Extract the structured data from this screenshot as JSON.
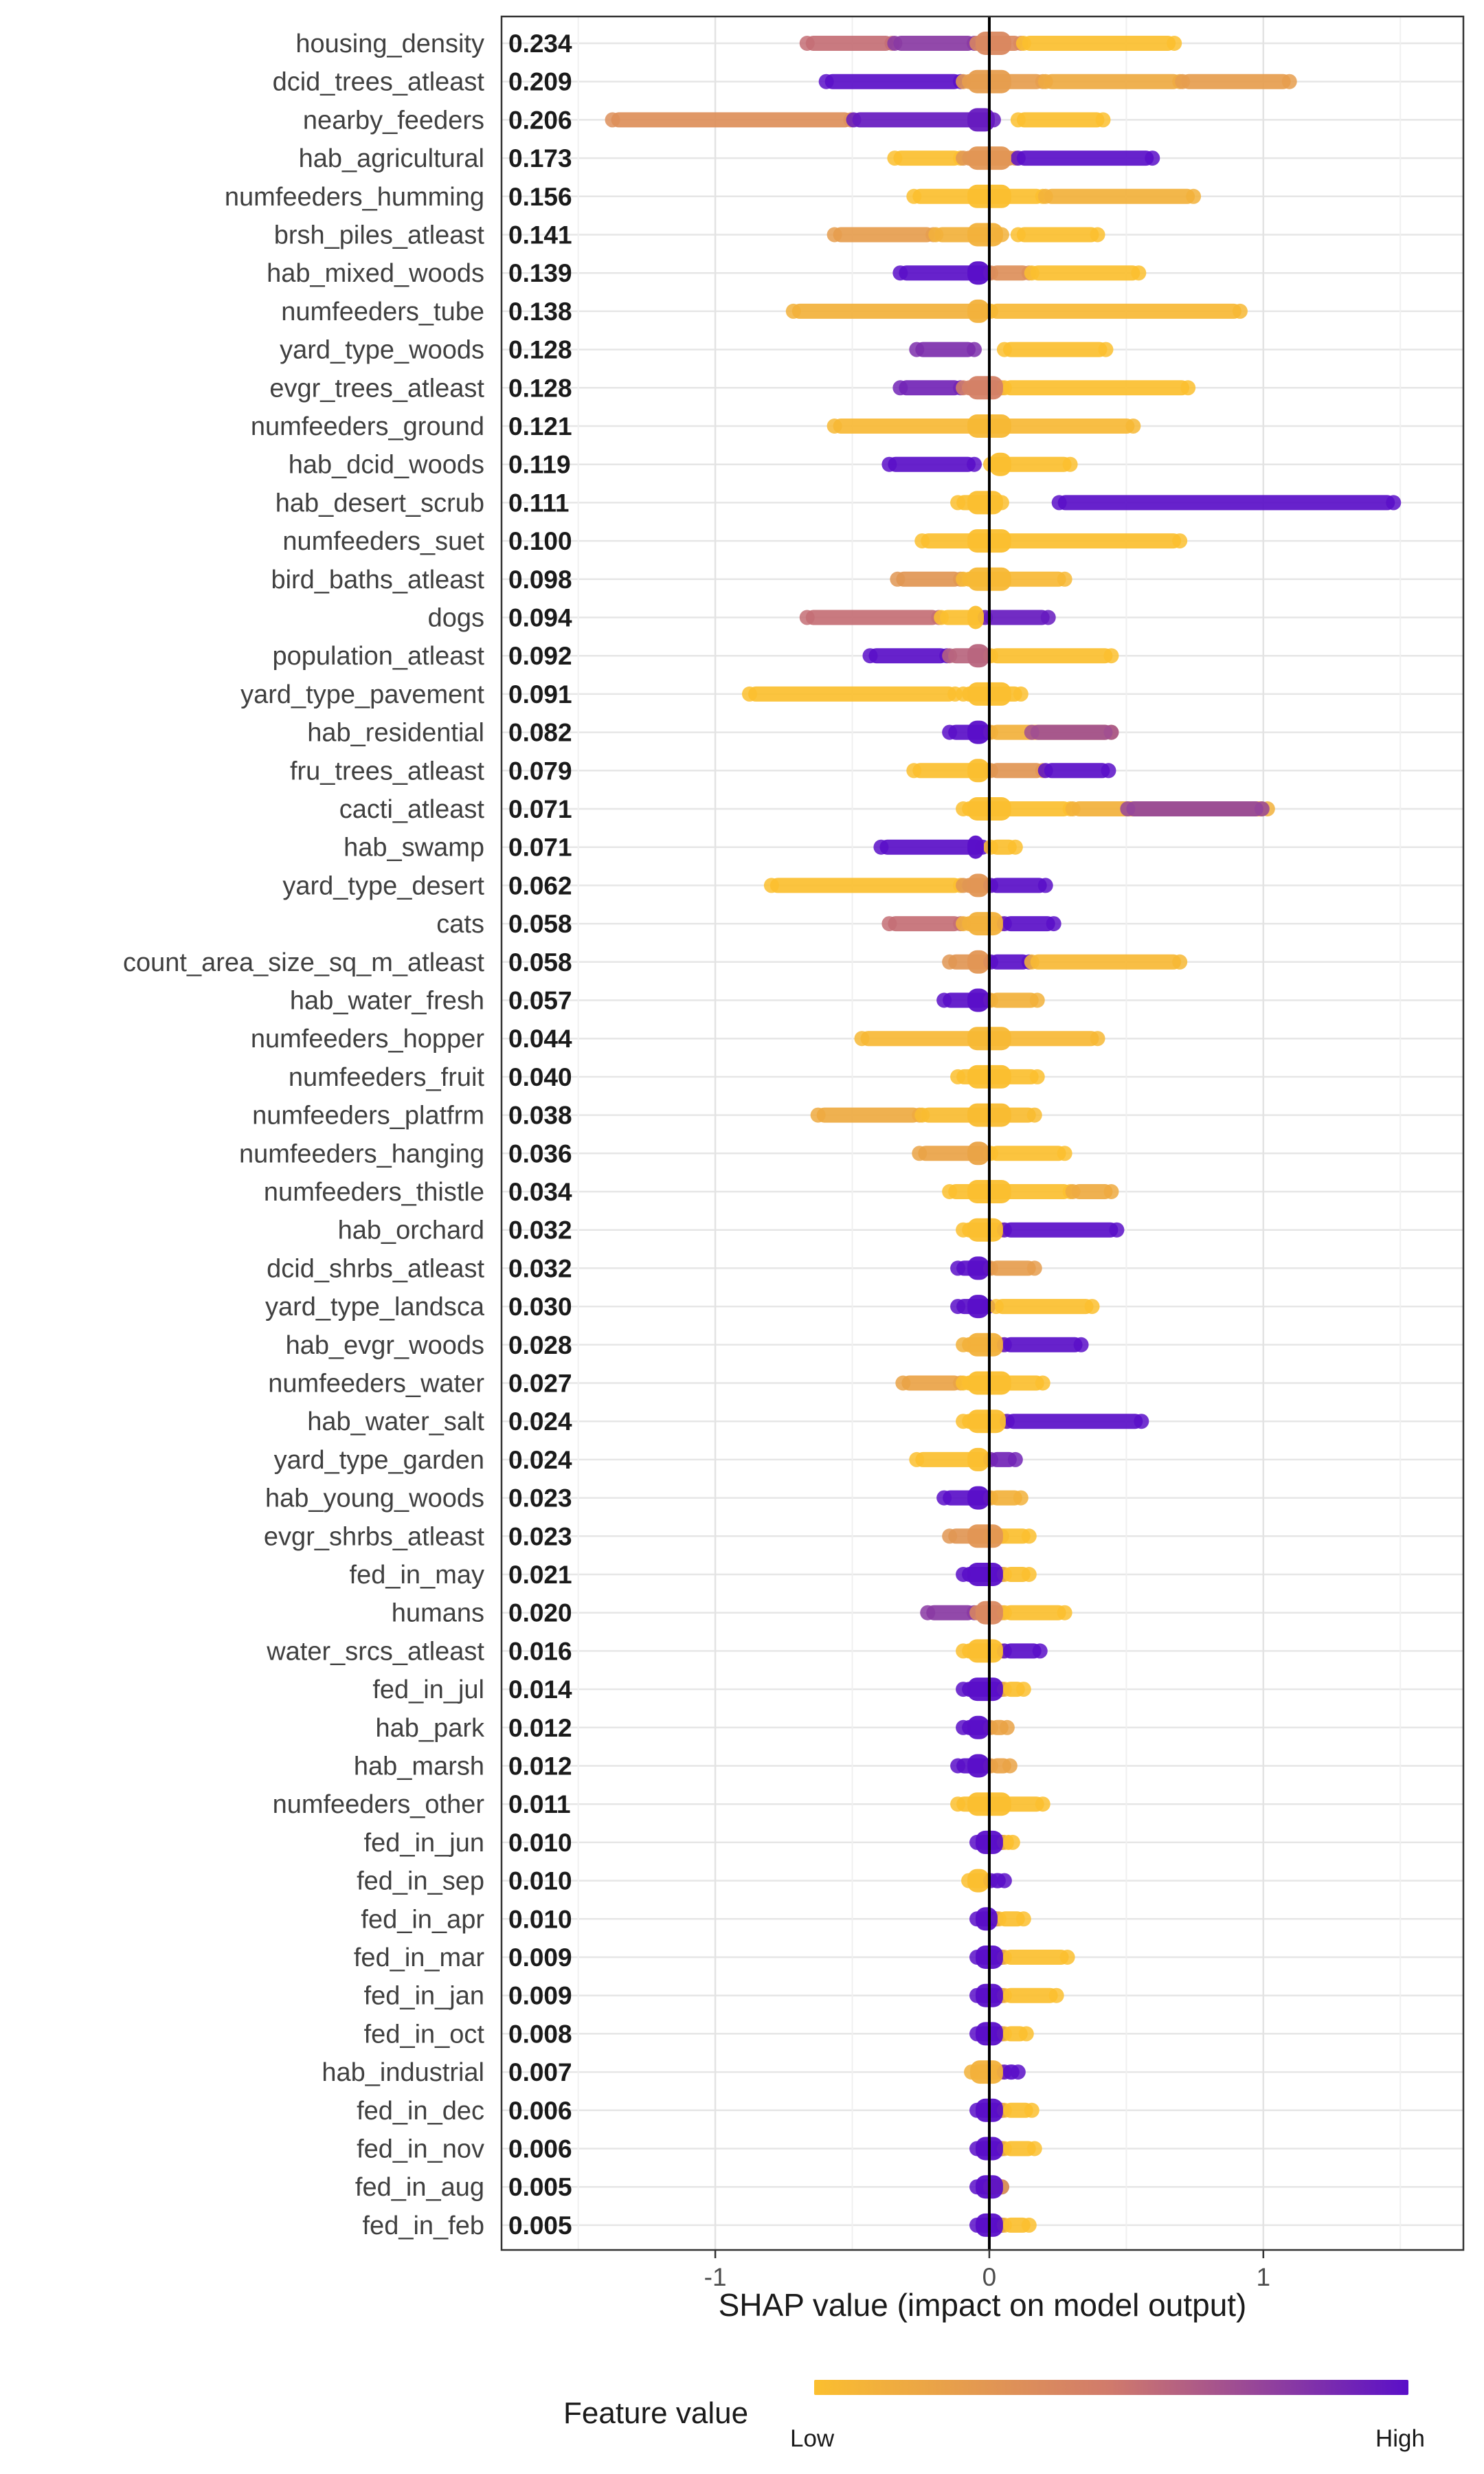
{
  "chart_data": {
    "type": "scatter",
    "subtype": "shap-beeswarm-summary",
    "title": "",
    "xlabel": "SHAP value (impact on model output)",
    "ylabel": "",
    "xlim": [
      -1.78,
      1.73
    ],
    "x_ticks": [
      -1,
      0,
      1
    ],
    "x_tick_labels": [
      "-1",
      "0",
      "1"
    ],
    "grid": true,
    "zero_line": true,
    "legend": {
      "title": "Feature value",
      "low_label": "Low",
      "high_label": "High",
      "placement": "bottom",
      "colors": {
        "low": "#fbbf2f",
        "mid": "#d07a6c",
        "high": "#5a0fc8"
      }
    },
    "features": [
      {
        "name": "housing_density",
        "importance": "0.234",
        "segments": [
          [
            -0.67,
            -0.35,
            0.55
          ],
          [
            -0.35,
            -0.05,
            0.8
          ],
          [
            -0.05,
            0.12,
            0.4
          ],
          [
            0.12,
            0.68,
            0.0
          ]
        ]
      },
      {
        "name": "dcid_trees_atleast",
        "importance": "0.209",
        "segments": [
          [
            -0.6,
            -0.1,
            1.0
          ],
          [
            -0.1,
            0.2,
            0.25
          ],
          [
            0.2,
            0.7,
            0.15
          ],
          [
            0.7,
            1.1,
            0.25
          ]
        ]
      },
      {
        "name": "nearby_feeders",
        "importance": "0.206",
        "segments": [
          [
            -1.38,
            -0.5,
            0.35
          ],
          [
            -0.5,
            0.02,
            0.95
          ],
          [
            0.1,
            0.42,
            0.0
          ]
        ]
      },
      {
        "name": "hab_agricultural",
        "importance": "0.173",
        "segments": [
          [
            -0.35,
            -0.1,
            0.0
          ],
          [
            -0.1,
            0.1,
            0.3
          ],
          [
            0.1,
            0.6,
            1.0
          ]
        ]
      },
      {
        "name": "numfeeders_humming",
        "importance": "0.156",
        "segments": [
          [
            -0.28,
            0.2,
            0.0
          ],
          [
            0.2,
            0.75,
            0.1
          ]
        ]
      },
      {
        "name": "brsh_piles_atleast",
        "importance": "0.141",
        "segments": [
          [
            -0.57,
            -0.2,
            0.25
          ],
          [
            -0.2,
            0.05,
            0.1
          ],
          [
            0.1,
            0.4,
            0.0
          ]
        ]
      },
      {
        "name": "hab_mixed_woods",
        "importance": "0.139",
        "segments": [
          [
            -0.33,
            0.0,
            1.0
          ],
          [
            0.0,
            0.15,
            0.35
          ],
          [
            0.15,
            0.55,
            0.0
          ]
        ]
      },
      {
        "name": "numfeeders_tube",
        "importance": "0.138",
        "segments": [
          [
            -0.72,
            0.0,
            0.1
          ],
          [
            0.0,
            0.92,
            0.05
          ]
        ]
      },
      {
        "name": "yard_type_woods",
        "importance": "0.128",
        "segments": [
          [
            -0.27,
            -0.05,
            0.85
          ],
          [
            0.05,
            0.43,
            0.0
          ]
        ]
      },
      {
        "name": "evgr_trees_atleast",
        "importance": "0.128",
        "segments": [
          [
            -0.33,
            -0.1,
            0.9
          ],
          [
            -0.1,
            0.05,
            0.45
          ],
          [
            0.05,
            0.73,
            0.0
          ]
        ]
      },
      {
        "name": "numfeeders_ground",
        "importance": "0.121",
        "segments": [
          [
            -0.57,
            0.53,
            0.05
          ]
        ]
      },
      {
        "name": "hab_dcid_woods",
        "importance": "0.119",
        "segments": [
          [
            -0.37,
            -0.05,
            1.0
          ],
          [
            0.0,
            0.3,
            0.0
          ]
        ]
      },
      {
        "name": "hab_desert_scrub",
        "importance": "0.111",
        "segments": [
          [
            -0.12,
            0.05,
            0.0
          ],
          [
            0.25,
            1.48,
            1.0
          ]
        ]
      },
      {
        "name": "numfeeders_suet",
        "importance": "0.100",
        "segments": [
          [
            -0.25,
            0.7,
            0.0
          ]
        ]
      },
      {
        "name": "bird_baths_atleast",
        "importance": "0.098",
        "segments": [
          [
            -0.34,
            -0.1,
            0.3
          ],
          [
            -0.1,
            0.28,
            0.05
          ]
        ]
      },
      {
        "name": "dogs",
        "importance": "0.094",
        "segments": [
          [
            -0.67,
            -0.18,
            0.55
          ],
          [
            -0.18,
            -0.02,
            0.0
          ],
          [
            -0.02,
            0.22,
            0.95
          ]
        ]
      },
      {
        "name": "population_atleast",
        "importance": "0.092",
        "segments": [
          [
            -0.44,
            -0.15,
            1.0
          ],
          [
            -0.15,
            0.0,
            0.6
          ],
          [
            0.0,
            0.45,
            0.0
          ]
        ]
      },
      {
        "name": "yard_type_pavement",
        "importance": "0.091",
        "segments": [
          [
            -0.88,
            -0.12,
            0.0
          ],
          [
            -0.1,
            0.12,
            0.0
          ]
        ]
      },
      {
        "name": "hab_residential",
        "importance": "0.082",
        "segments": [
          [
            -0.15,
            0.0,
            1.0
          ],
          [
            0.0,
            0.45,
            0.1
          ],
          [
            0.15,
            0.45,
            0.7
          ]
        ]
      },
      {
        "name": "fru_trees_atleast",
        "importance": "0.079",
        "segments": [
          [
            -0.28,
            0.0,
            0.0
          ],
          [
            0.0,
            0.2,
            0.3
          ],
          [
            0.2,
            0.44,
            1.0
          ]
        ]
      },
      {
        "name": "cacti_atleast",
        "importance": "0.071",
        "segments": [
          [
            -0.1,
            0.3,
            0.0
          ],
          [
            0.3,
            1.02,
            0.1
          ],
          [
            0.5,
            1.0,
            0.75
          ]
        ]
      },
      {
        "name": "hab_swamp",
        "importance": "0.071",
        "segments": [
          [
            -0.4,
            -0.02,
            1.0
          ],
          [
            0.0,
            0.1,
            0.0
          ]
        ]
      },
      {
        "name": "yard_type_desert",
        "importance": "0.062",
        "segments": [
          [
            -0.8,
            -0.1,
            0.0
          ],
          [
            -0.1,
            0.0,
            0.3
          ],
          [
            0.0,
            0.21,
            1.0
          ]
        ]
      },
      {
        "name": "cats",
        "importance": "0.058",
        "segments": [
          [
            -0.37,
            -0.1,
            0.55
          ],
          [
            -0.1,
            0.05,
            0.1
          ],
          [
            0.05,
            0.24,
            1.0
          ]
        ]
      },
      {
        "name": "count_area_size_sq_m_atleast",
        "importance": "0.058",
        "segments": [
          [
            -0.15,
            0.0,
            0.3
          ],
          [
            0.0,
            0.15,
            1.0
          ],
          [
            0.15,
            0.7,
            0.05
          ]
        ]
      },
      {
        "name": "hab_water_fresh",
        "importance": "0.057",
        "segments": [
          [
            -0.17,
            0.0,
            1.0
          ],
          [
            0.0,
            0.18,
            0.1
          ]
        ]
      },
      {
        "name": "numfeeders_hopper",
        "importance": "0.044",
        "segments": [
          [
            -0.47,
            0.4,
            0.05
          ]
        ]
      },
      {
        "name": "numfeeders_fruit",
        "importance": "0.040",
        "segments": [
          [
            -0.12,
            0.18,
            0.0
          ]
        ]
      },
      {
        "name": "numfeeders_platfrm",
        "importance": "0.038",
        "segments": [
          [
            -0.63,
            -0.25,
            0.15
          ],
          [
            -0.25,
            0.17,
            0.02
          ]
        ]
      },
      {
        "name": "numfeeders_hanging",
        "importance": "0.036",
        "segments": [
          [
            -0.26,
            0.0,
            0.2
          ],
          [
            0.0,
            0.28,
            0.0
          ]
        ]
      },
      {
        "name": "numfeeders_thistle",
        "importance": "0.034",
        "segments": [
          [
            -0.15,
            0.3,
            0.0
          ],
          [
            0.3,
            0.45,
            0.15
          ]
        ]
      },
      {
        "name": "hab_orchard",
        "importance": "0.032",
        "segments": [
          [
            -0.1,
            0.05,
            0.0
          ],
          [
            0.05,
            0.47,
            1.0
          ]
        ]
      },
      {
        "name": "dcid_shrbs_atleast",
        "importance": "0.032",
        "segments": [
          [
            -0.12,
            0.0,
            1.0
          ],
          [
            0.0,
            0.17,
            0.25
          ]
        ]
      },
      {
        "name": "yard_type_landsca",
        "importance": "0.030",
        "segments": [
          [
            -0.12,
            0.0,
            1.0
          ],
          [
            0.02,
            0.38,
            0.0
          ]
        ]
      },
      {
        "name": "hab_evgr_woods",
        "importance": "0.028",
        "segments": [
          [
            -0.1,
            0.05,
            0.1
          ],
          [
            0.05,
            0.34,
            1.0
          ]
        ]
      },
      {
        "name": "numfeeders_water",
        "importance": "0.027",
        "segments": [
          [
            -0.32,
            -0.1,
            0.2
          ],
          [
            -0.1,
            0.2,
            0.0
          ]
        ]
      },
      {
        "name": "hab_water_salt",
        "importance": "0.024",
        "segments": [
          [
            -0.1,
            0.06,
            0.0
          ],
          [
            0.06,
            0.56,
            1.0
          ]
        ]
      },
      {
        "name": "yard_type_garden",
        "importance": "0.024",
        "segments": [
          [
            -0.27,
            0.0,
            0.0
          ],
          [
            0.0,
            0.1,
            0.9
          ]
        ]
      },
      {
        "name": "hab_young_woods",
        "importance": "0.023",
        "segments": [
          [
            -0.17,
            0.0,
            1.0
          ],
          [
            0.0,
            0.12,
            0.1
          ]
        ]
      },
      {
        "name": "evgr_shrbs_atleast",
        "importance": "0.023",
        "segments": [
          [
            -0.15,
            0.05,
            0.3
          ],
          [
            0.0,
            0.15,
            0.0
          ]
        ]
      },
      {
        "name": "fed_in_may",
        "importance": "0.021",
        "segments": [
          [
            -0.1,
            0.05,
            1.0
          ],
          [
            0.05,
            0.15,
            0.0
          ]
        ]
      },
      {
        "name": "humans",
        "importance": "0.020",
        "segments": [
          [
            -0.23,
            -0.05,
            0.8
          ],
          [
            -0.05,
            0.05,
            0.4
          ],
          [
            0.05,
            0.28,
            0.0
          ]
        ]
      },
      {
        "name": "water_srcs_atleast",
        "importance": "0.016",
        "segments": [
          [
            -0.1,
            0.05,
            0.0
          ],
          [
            0.05,
            0.19,
            1.0
          ]
        ]
      },
      {
        "name": "fed_in_jul",
        "importance": "0.014",
        "segments": [
          [
            -0.1,
            0.05,
            1.0
          ],
          [
            0.05,
            0.13,
            0.0
          ]
        ]
      },
      {
        "name": "hab_park",
        "importance": "0.012",
        "segments": [
          [
            -0.1,
            0.0,
            1.0
          ],
          [
            0.0,
            0.07,
            0.2
          ]
        ]
      },
      {
        "name": "hab_marsh",
        "importance": "0.012",
        "segments": [
          [
            -0.12,
            0.0,
            1.0
          ],
          [
            0.0,
            0.08,
            0.2
          ]
        ]
      },
      {
        "name": "numfeeders_other",
        "importance": "0.011",
        "segments": [
          [
            -0.12,
            0.2,
            0.0
          ]
        ]
      },
      {
        "name": "fed_in_jun",
        "importance": "0.010",
        "segments": [
          [
            -0.05,
            0.05,
            1.0
          ],
          [
            0.05,
            0.09,
            0.0
          ]
        ]
      },
      {
        "name": "fed_in_sep",
        "importance": "0.010",
        "segments": [
          [
            -0.08,
            0.0,
            0.0
          ],
          [
            0.0,
            0.06,
            1.0
          ]
        ]
      },
      {
        "name": "fed_in_apr",
        "importance": "0.010",
        "segments": [
          [
            -0.05,
            0.03,
            1.0
          ],
          [
            0.03,
            0.13,
            0.0
          ]
        ]
      },
      {
        "name": "fed_in_mar",
        "importance": "0.009",
        "segments": [
          [
            -0.05,
            0.05,
            1.0
          ],
          [
            0.05,
            0.29,
            0.0
          ]
        ]
      },
      {
        "name": "fed_in_jan",
        "importance": "0.009",
        "segments": [
          [
            -0.05,
            0.05,
            1.0
          ],
          [
            0.05,
            0.25,
            0.0
          ]
        ]
      },
      {
        "name": "fed_in_oct",
        "importance": "0.008",
        "segments": [
          [
            -0.05,
            0.05,
            1.0
          ],
          [
            0.05,
            0.14,
            0.0
          ]
        ]
      },
      {
        "name": "hab_industrial",
        "importance": "0.007",
        "segments": [
          [
            -0.07,
            0.05,
            0.1
          ],
          [
            0.05,
            0.11,
            1.0
          ]
        ]
      },
      {
        "name": "fed_in_dec",
        "importance": "0.006",
        "segments": [
          [
            -0.05,
            0.05,
            1.0
          ],
          [
            0.05,
            0.16,
            0.0
          ]
        ]
      },
      {
        "name": "fed_in_nov",
        "importance": "0.006",
        "segments": [
          [
            -0.05,
            0.05,
            1.0
          ],
          [
            0.05,
            0.17,
            0.0
          ]
        ]
      },
      {
        "name": "fed_in_aug",
        "importance": "0.005",
        "segments": [
          [
            -0.05,
            0.05,
            1.0
          ],
          [
            0.0,
            0.05,
            0.2
          ]
        ]
      },
      {
        "name": "fed_in_feb",
        "importance": "0.005",
        "segments": [
          [
            -0.05,
            0.05,
            1.0
          ],
          [
            0.05,
            0.15,
            0.0
          ]
        ]
      }
    ]
  }
}
